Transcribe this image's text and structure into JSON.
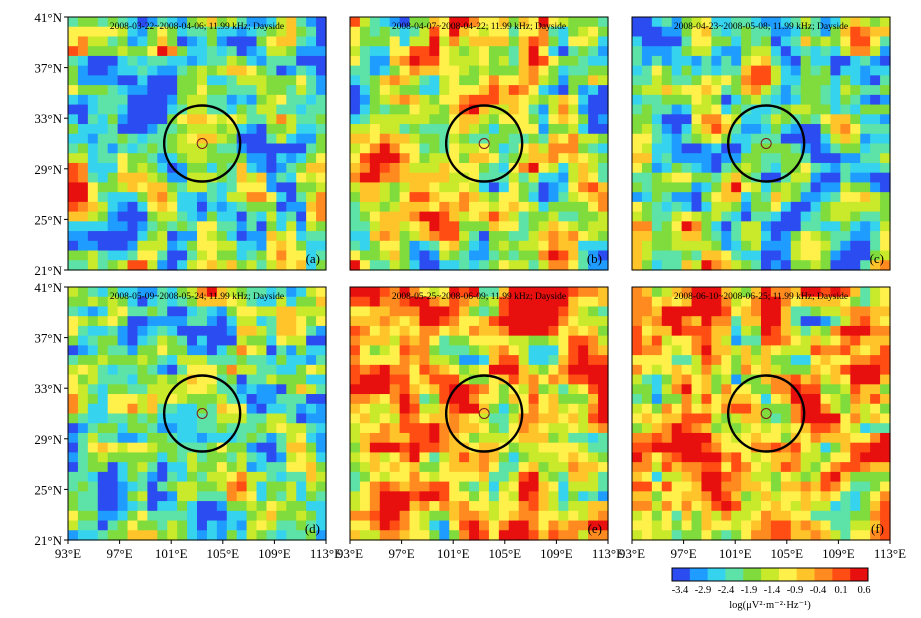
{
  "panels": [
    {
      "title": "2008-03-22~2008-04-06; 11.99 kHz; Dayside",
      "label": "(a)",
      "level": 0.22,
      "seed": 3
    },
    {
      "title": "2008-04-07~2008-04-22; 11.99 kHz; Dayside",
      "label": "(b)",
      "level": 0.4,
      "seed": 11
    },
    {
      "title": "2008-04-23~2008-05-08; 11.99 kHz; Dayside",
      "label": "(c)",
      "level": 0.3,
      "seed": 7
    },
    {
      "title": "2008-05-09~2008-05-24; 11.99 kHz; Dayside",
      "label": "(d)",
      "level": 0.26,
      "seed": 19
    },
    {
      "title": "2008-05-25~2008-06-09; 11.99 kHz; Dayside",
      "label": "(e)",
      "level": 0.55,
      "seed": 23
    },
    {
      "title": "2008-06-10~2008-06-25; 11.99 kHz; Dayside",
      "label": "(f)",
      "level": 0.5,
      "seed": 31
    }
  ],
  "y_ticks": [
    "41°N",
    "37°N",
    "33°N",
    "29°N",
    "25°N",
    "21°N"
  ],
  "x_ticks_left": [
    "93°E",
    "97°E",
    "101°E",
    "105°E",
    "109°E",
    "113°E"
  ],
  "x_ticks_mid": [
    "93°E",
    "97°E",
    "101°E",
    "105°E",
    "109°E",
    "113°E"
  ],
  "x_ticks_right": [
    "93°E",
    "97°E",
    "101°E",
    "105°E",
    "109°E",
    "113°E"
  ],
  "epicenter": {
    "lon": 103.4,
    "lat": 31.0
  },
  "extent": {
    "lon": [
      93,
      113
    ],
    "lat": [
      21,
      41
    ]
  },
  "colorbar": {
    "ticks": [
      "-3.4",
      "-2.9",
      "-2.4",
      "-1.9",
      "-1.4",
      "-0.9",
      "-0.4",
      "0.1",
      "0.6"
    ],
    "label": "log(μV²·m⁻²·Hz⁻¹)",
    "colors": [
      "#2b4cf0",
      "#1f9cff",
      "#36d3ee",
      "#5de3a8",
      "#7fdc3c",
      "#c8ea2a",
      "#fff14a",
      "#ffc42a",
      "#ff8a1f",
      "#ff4d14",
      "#e80f0f"
    ]
  }
}
